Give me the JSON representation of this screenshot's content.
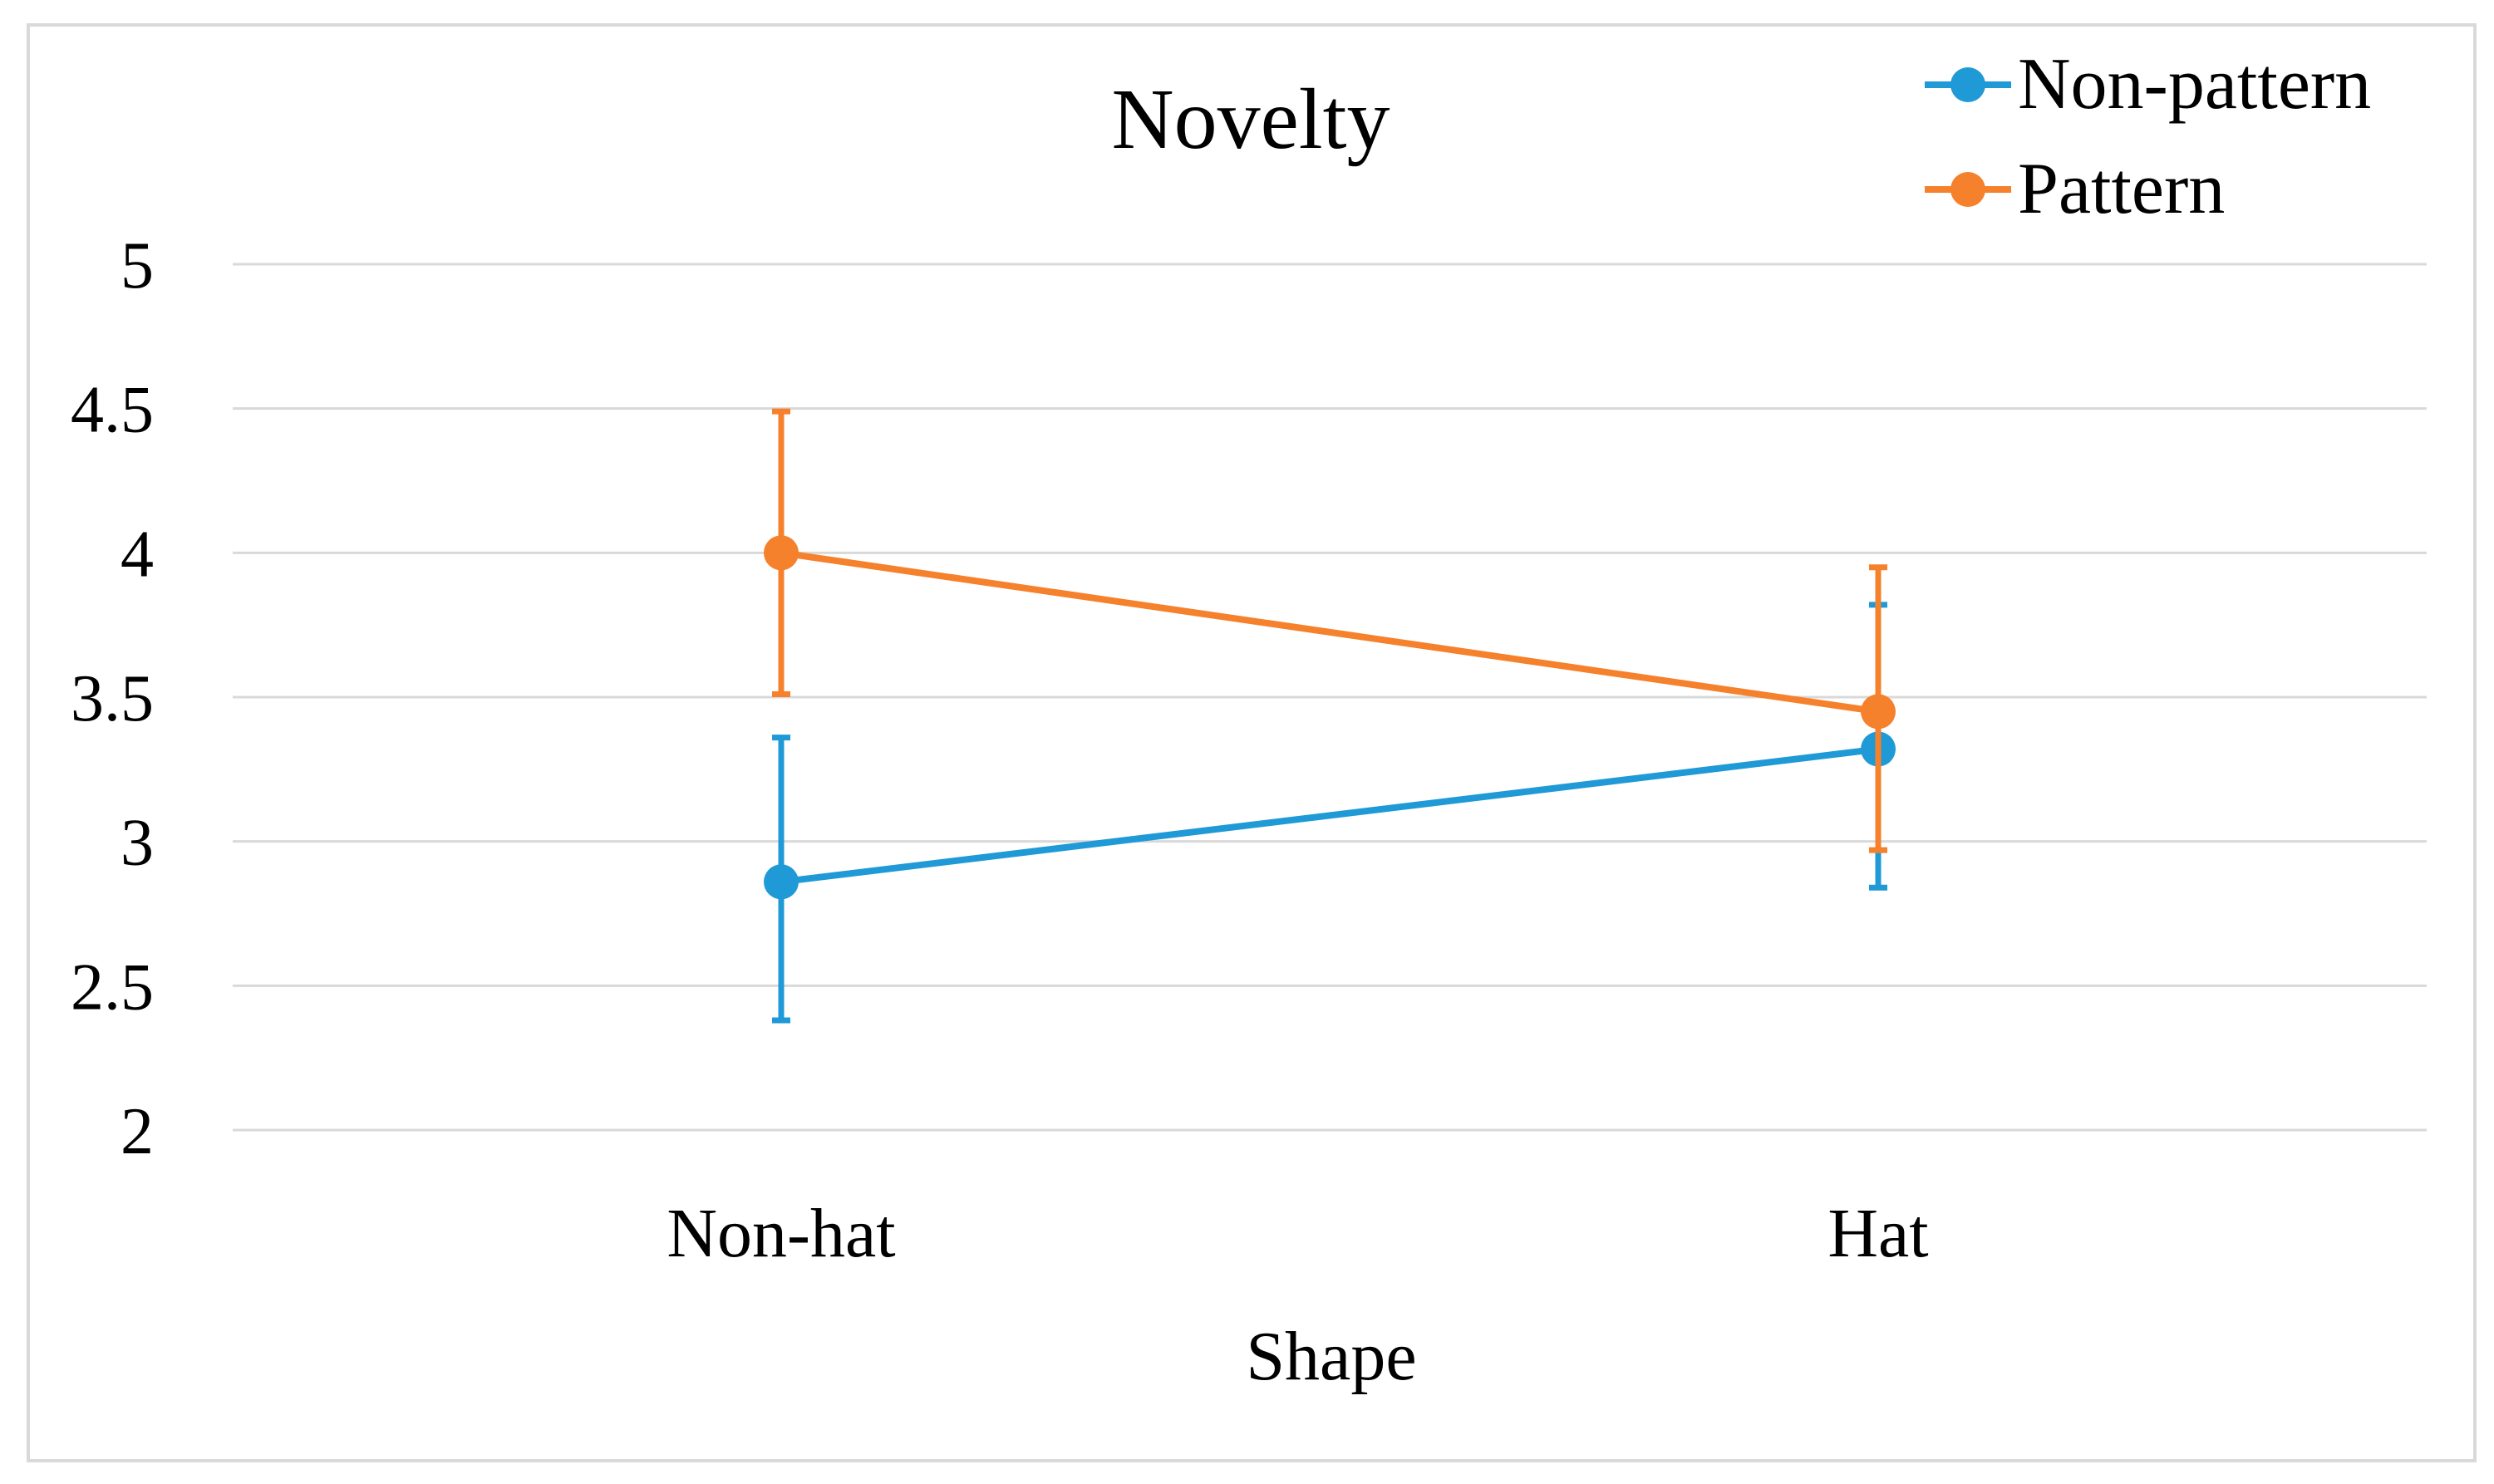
{
  "chart_data": {
    "type": "line",
    "title": "Novelty",
    "xlabel": "Shape",
    "ylabel": "",
    "categories": [
      "Non-hat",
      "Hat"
    ],
    "ylim": [
      2,
      5
    ],
    "yticks": [
      "5",
      "4.5",
      "4",
      "3.5",
      "3",
      "2.5",
      "2"
    ],
    "grid": true,
    "legend_position": "top-right",
    "error_bars": true,
    "series": [
      {
        "name": "Non-pattern",
        "color": "#1f9ad6",
        "values": [
          2.86,
          3.32
        ],
        "err_low": [
          2.38,
          2.84
        ],
        "err_high": [
          3.36,
          3.82
        ]
      },
      {
        "name": "Pattern",
        "color": "#f5812c",
        "values": [
          4.0,
          3.45
        ],
        "err_low": [
          3.51,
          2.97
        ],
        "err_high": [
          4.49,
          3.95
        ]
      }
    ]
  }
}
